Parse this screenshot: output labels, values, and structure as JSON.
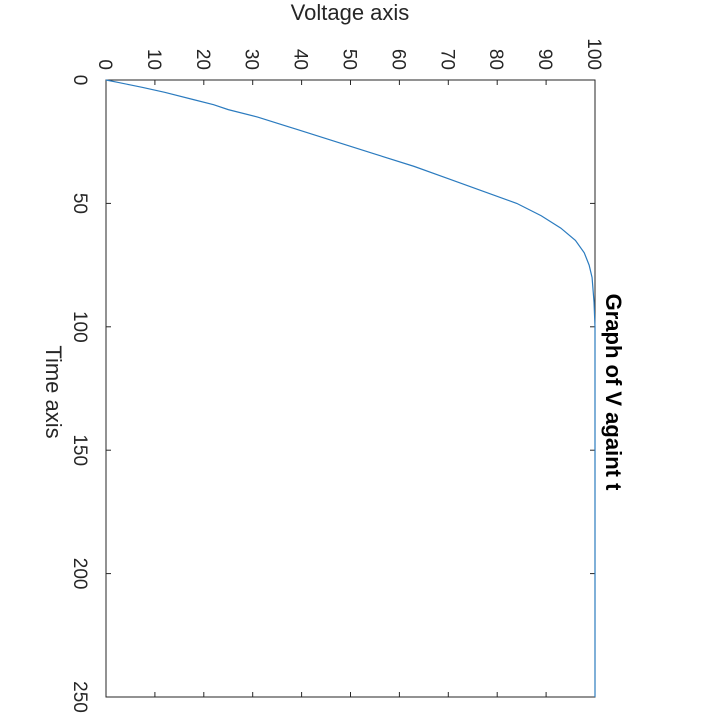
{
  "chart_data": {
    "type": "line",
    "orientation": "rotated-90-clockwise",
    "title": "Graph of V againt t",
    "xlabel": "Time axis",
    "ylabel": "Voltage axis",
    "xlim": [
      0,
      250
    ],
    "ylim": [
      0,
      100
    ],
    "xticks": [
      0,
      50,
      100,
      150,
      200,
      250
    ],
    "yticks": [
      0,
      10,
      20,
      30,
      40,
      50,
      60,
      70,
      80,
      90,
      100
    ],
    "grid": false,
    "colors": {
      "series": "#2b7bbf",
      "axis": "#262626"
    },
    "series": [
      {
        "values_x": [
          0,
          1,
          2,
          3,
          5,
          8,
          10,
          12,
          15,
          20,
          25,
          30,
          35,
          40,
          45,
          50,
          55,
          60,
          65,
          70,
          75,
          80,
          90,
          100,
          110,
          120,
          130,
          150,
          175,
          200,
          225,
          250
        ],
        "values_y": [
          0,
          2.5,
          5,
          7.5,
          12,
          18,
          22,
          25,
          31,
          39,
          47,
          55,
          63,
          70,
          77,
          84,
          89,
          93,
          96,
          97.8,
          98.8,
          99.4,
          99.8,
          100,
          100,
          100,
          100,
          100,
          100,
          100,
          100,
          100
        ]
      }
    ]
  }
}
